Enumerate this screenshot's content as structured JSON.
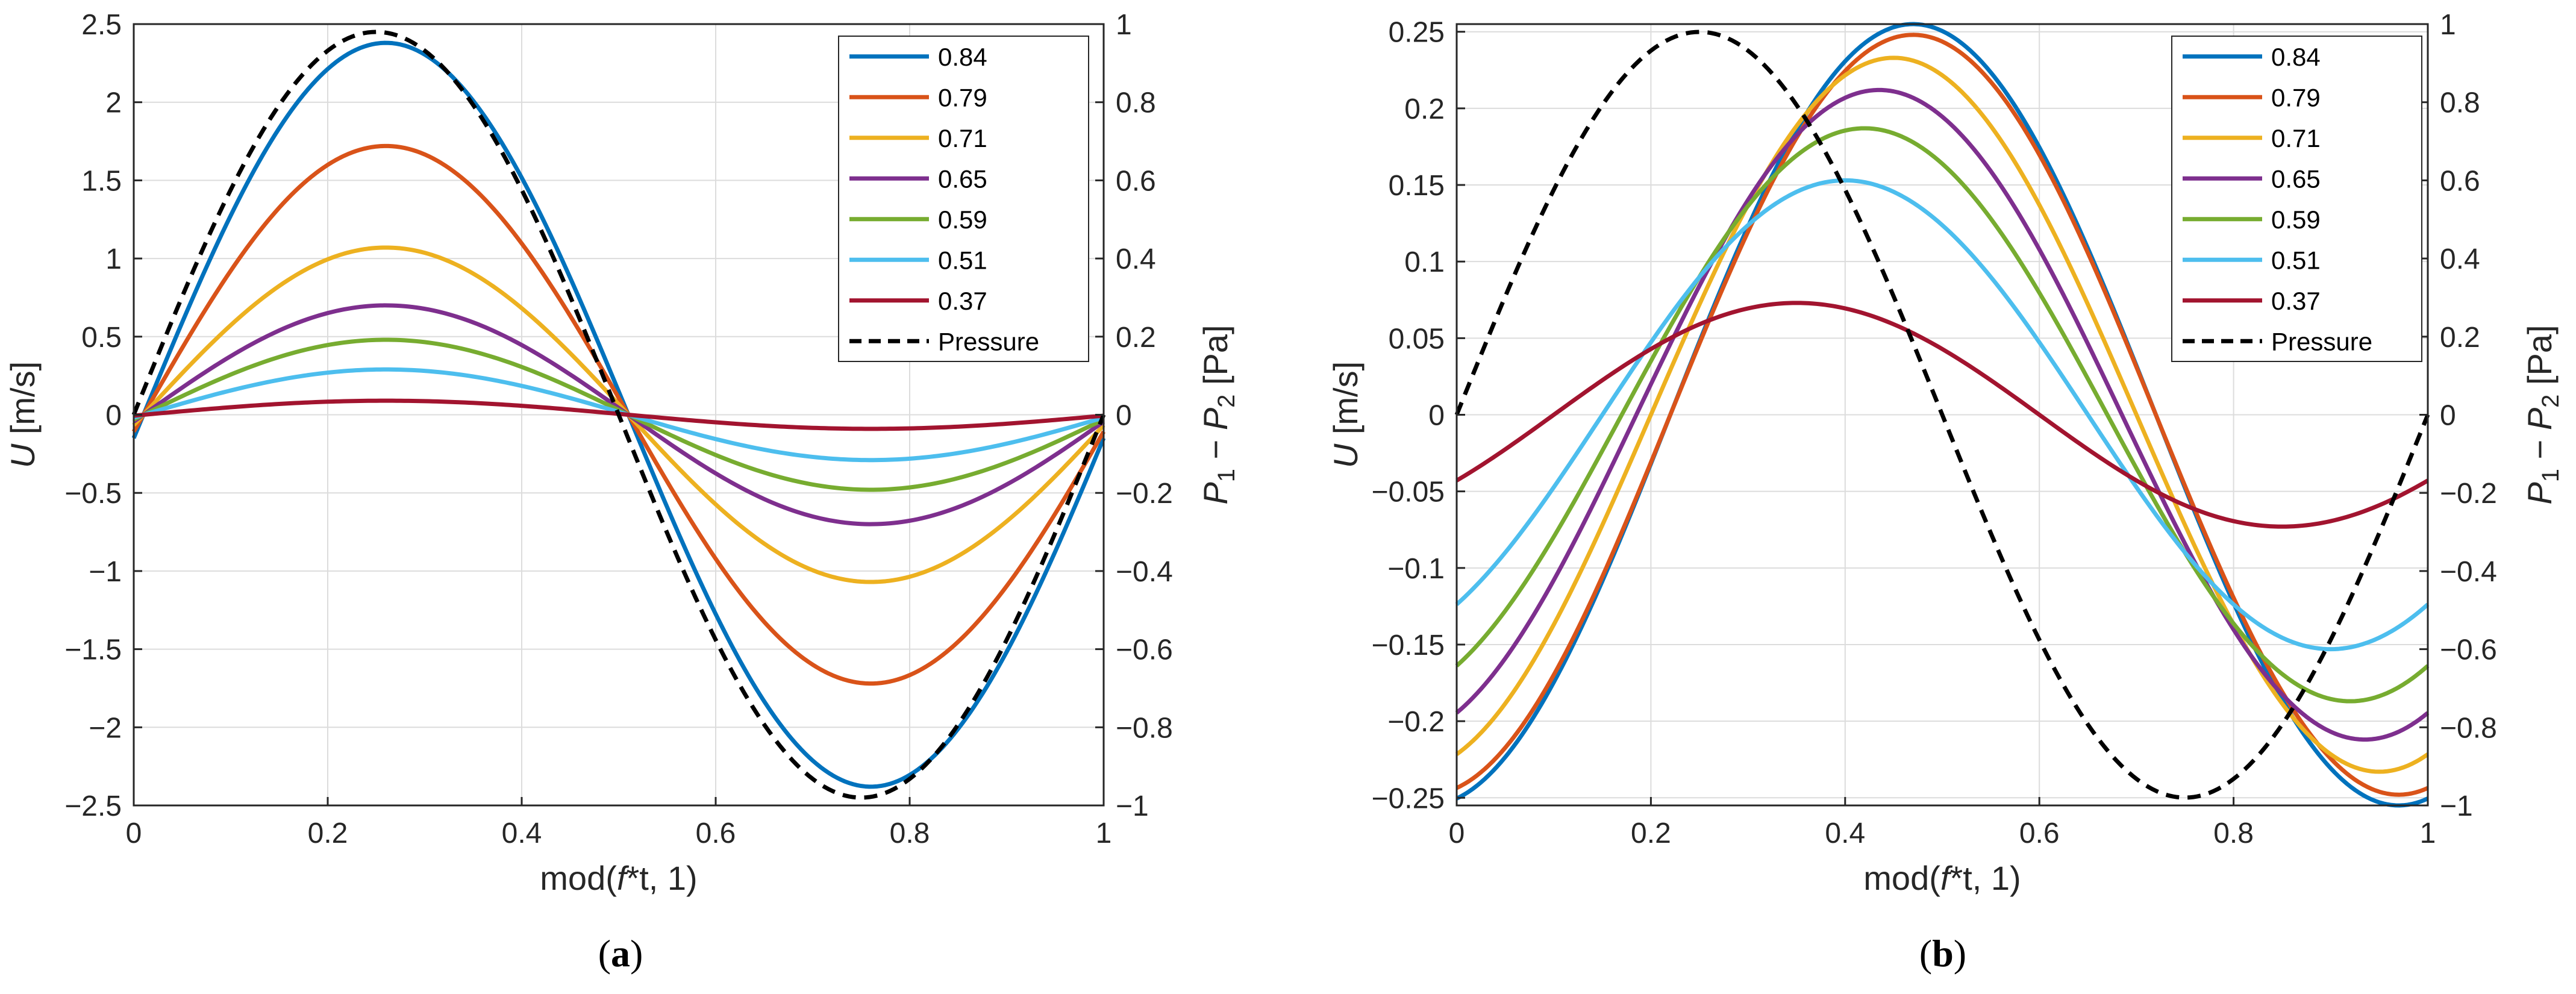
{
  "chart_data": [
    {
      "type": "line",
      "panel_label": "a",
      "xlabel": "mod(f*t, 1)",
      "xlabel_parts": {
        "pre": "mod(",
        "italic": "f",
        "post": "*t, 1)"
      },
      "ylabel": "U [m/s]",
      "ylabel_parts": {
        "italic": "U",
        "post": " [m/s]"
      },
      "y2label": "P1 − P2 [Pa]",
      "y2label_parts": {
        "p": "P",
        "sub1": "1",
        "minus": " − ",
        "sub2": "2",
        "unit": " [Pa]"
      },
      "xlim": [
        0,
        1
      ],
      "ylim": [
        -2.5,
        2.5
      ],
      "y2lim": [
        -1,
        1
      ],
      "grid": true,
      "legend_location": "top-right",
      "x_ticks": [
        0,
        0.2,
        0.4,
        0.6,
        0.8,
        1
      ],
      "x_tick_labels": [
        "0",
        "0.2",
        "0.4",
        "0.6",
        "0.8",
        "1"
      ],
      "y_ticks": [
        -2.5,
        -2,
        -1.5,
        -1,
        -0.5,
        0,
        0.5,
        1,
        1.5,
        2,
        2.5
      ],
      "y_tick_labels": [
        "−2.5",
        "−2",
        "−1.5",
        "−1",
        "−0.5",
        "0",
        "0.5",
        "1",
        "1.5",
        "2",
        "2.5"
      ],
      "y2_ticks": [
        -1,
        -0.8,
        -0.6,
        -0.4,
        -0.2,
        0,
        0.2,
        0.4,
        0.6,
        0.8,
        1
      ],
      "y2_tick_labels": [
        "−1",
        "−0.8",
        "−0.6",
        "−0.4",
        "−0.2",
        "0",
        "0.2",
        "0.4",
        "0.6",
        "0.8",
        "1"
      ],
      "series": [
        {
          "name": "0.84",
          "color": "#0072BD",
          "axis": "left",
          "amplitude": 2.38,
          "phase_shift": 0.01
        },
        {
          "name": "0.79",
          "color": "#D95319",
          "axis": "left",
          "amplitude": 1.72,
          "phase_shift": 0.01
        },
        {
          "name": "0.71",
          "color": "#EDB120",
          "axis": "left",
          "amplitude": 1.07,
          "phase_shift": 0.01
        },
        {
          "name": "0.65",
          "color": "#7E2F8E",
          "axis": "left",
          "amplitude": 0.7,
          "phase_shift": 0.01
        },
        {
          "name": "0.59",
          "color": "#77AC30",
          "axis": "left",
          "amplitude": 0.48,
          "phase_shift": 0.01
        },
        {
          "name": "0.51",
          "color": "#4DBEEE",
          "axis": "left",
          "amplitude": 0.29,
          "phase_shift": 0.01
        },
        {
          "name": "0.37",
          "color": "#A2142F",
          "axis": "left",
          "amplitude": 0.09,
          "phase_shift": 0.01
        },
        {
          "name": "Pressure",
          "color": "#000000",
          "axis": "right",
          "amplitude": 0.98,
          "phase_shift": 0.0,
          "dashed": true
        }
      ]
    },
    {
      "type": "line",
      "panel_label": "b",
      "xlabel": "mod(f*t, 1)",
      "xlabel_parts": {
        "pre": "mod(",
        "italic": "f",
        "post": "*t, 1)"
      },
      "ylabel": "U [m/s]",
      "ylabel_parts": {
        "italic": "U",
        "post": " [m/s]"
      },
      "y2label": "P1 − P2 [Pa]",
      "y2label_parts": {
        "p": "P",
        "sub1": "1",
        "minus": " − ",
        "sub2": "2",
        "unit": " [Pa]"
      },
      "xlim": [
        0,
        1
      ],
      "ylim": [
        -0.255,
        0.255
      ],
      "y2lim": [
        -1,
        1
      ],
      "grid": true,
      "legend_location": "top-right",
      "x_ticks": [
        0,
        0.2,
        0.4,
        0.6,
        0.8,
        1
      ],
      "x_tick_labels": [
        "0",
        "0.2",
        "0.4",
        "0.6",
        "0.8",
        "1"
      ],
      "y_ticks": [
        -0.25,
        -0.2,
        -0.15,
        -0.1,
        -0.05,
        0,
        0.05,
        0.1,
        0.15,
        0.2,
        0.25
      ],
      "y_tick_labels": [
        "−0.25",
        "−0.2",
        "−0.15",
        "−0.1",
        "−0.05",
        "0",
        "0.05",
        "0.1",
        "0.15",
        "0.2",
        "0.25"
      ],
      "y2_ticks": [
        -1,
        -0.8,
        -0.6,
        -0.4,
        -0.2,
        0,
        0.2,
        0.4,
        0.6,
        0.8,
        1
      ],
      "y2_tick_labels": [
        "−1",
        "−0.8",
        "−0.6",
        "−0.4",
        "−0.2",
        "0",
        "0.2",
        "0.4",
        "0.6",
        "0.8",
        "1"
      ],
      "series": [
        {
          "name": "0.84",
          "color": "#0072BD",
          "axis": "left",
          "amplitude": 0.255,
          "phase_shift": 0.22
        },
        {
          "name": "0.79",
          "color": "#D95319",
          "axis": "left",
          "amplitude": 0.248,
          "phase_shift": 0.22
        },
        {
          "name": "0.71",
          "color": "#EDB120",
          "axis": "left",
          "amplitude": 0.233,
          "phase_shift": 0.2
        },
        {
          "name": "0.65",
          "color": "#7E2F8E",
          "axis": "left",
          "amplitude": 0.212,
          "phase_shift": 0.185
        },
        {
          "name": "0.59",
          "color": "#77AC30",
          "axis": "left",
          "amplitude": 0.187,
          "phase_shift": 0.17
        },
        {
          "name": "0.51",
          "color": "#4DBEEE",
          "axis": "left",
          "amplitude": 0.153,
          "phase_shift": 0.15
        },
        {
          "name": "0.37",
          "color": "#A2142F",
          "axis": "left",
          "amplitude": 0.073,
          "phase_shift": 0.1
        },
        {
          "name": "Pressure",
          "color": "#000000",
          "axis": "right",
          "amplitude": 0.98,
          "phase_shift": 0.0,
          "dashed": true
        }
      ]
    }
  ]
}
